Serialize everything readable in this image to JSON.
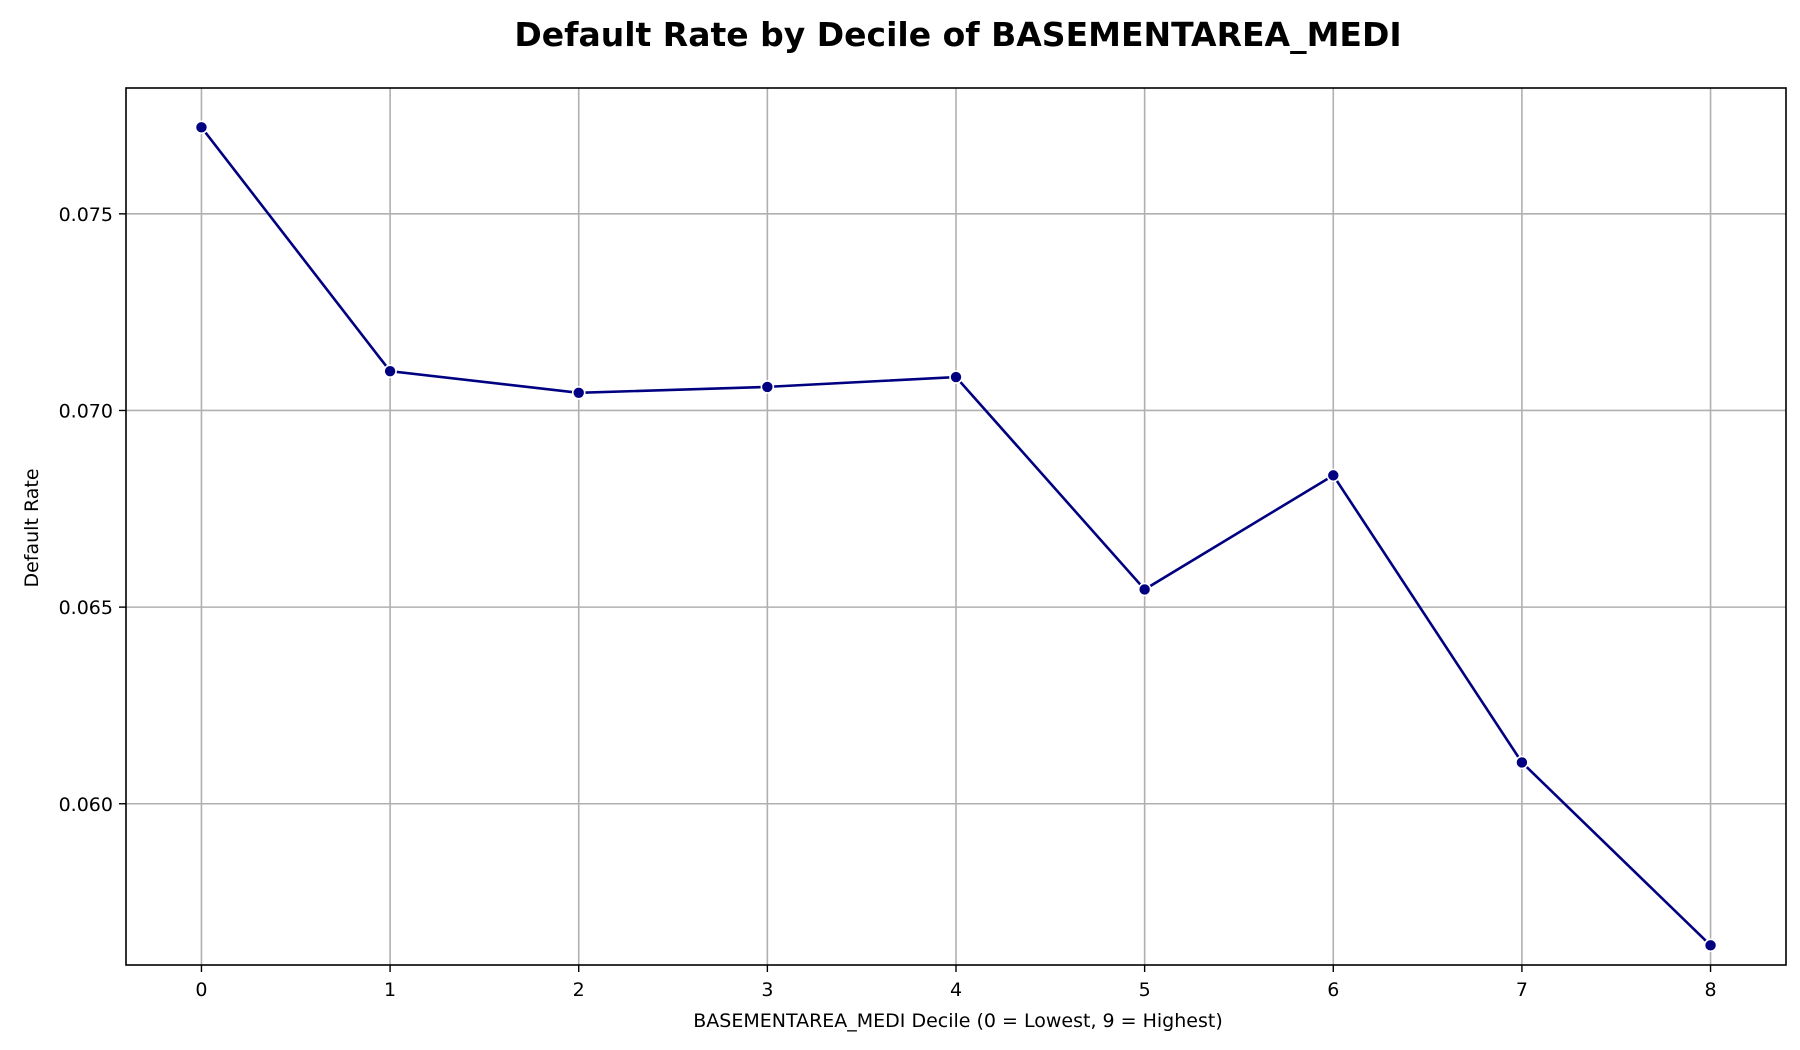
{
  "chart_data": {
    "type": "line",
    "title": "Default Rate by Decile of BASEMENTAREA_MEDI",
    "xlabel": "BASEMENTAREA_MEDI Decile (0 = Lowest, 9 = Highest)",
    "ylabel": "Default Rate",
    "x": [
      0,
      1,
      2,
      3,
      4,
      5,
      6,
      7,
      8
    ],
    "x_tick_labels": [
      "0",
      "1",
      "2",
      "3",
      "4",
      "5",
      "6",
      "7",
      "8"
    ],
    "y_ticks": [
      0.06,
      0.065,
      0.07,
      0.075
    ],
    "y_tick_labels": [
      "0.060",
      "0.065",
      "0.070",
      "0.075"
    ],
    "xlim": [
      -0.4,
      8.4
    ],
    "ylim": [
      0.0559,
      0.0782
    ],
    "grid": true,
    "series": [
      {
        "values": [
          0.0772,
          0.071,
          0.07045,
          0.0706,
          0.07085,
          0.06545,
          0.06835,
          0.06105,
          0.0564
        ],
        "color": "#000080",
        "marker": "circle"
      }
    ]
  }
}
